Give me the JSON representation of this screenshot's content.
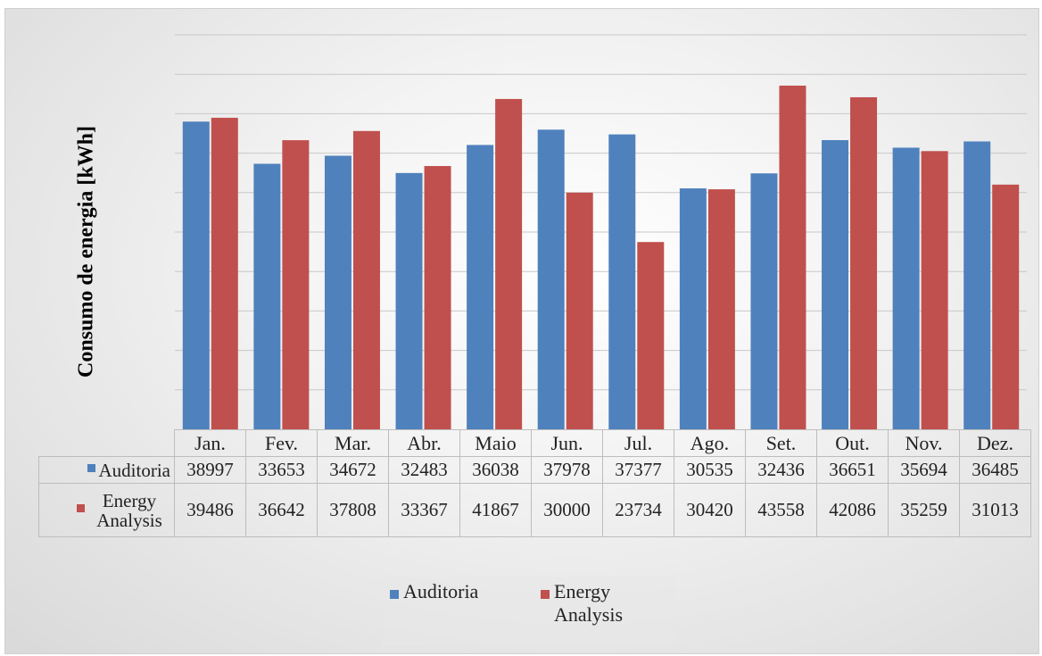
{
  "chart_data": {
    "type": "bar",
    "title": "",
    "ylabel": "Consumo de energia [kWh]",
    "xlabel": "",
    "categories": [
      "Jan.",
      "Fev.",
      "Mar.",
      "Abr.",
      "Maio",
      "Jun.",
      "Jul.",
      "Ago.",
      "Set.",
      "Out.",
      "Nov.",
      "Dez."
    ],
    "series": [
      {
        "name": "Auditoria",
        "color": "#4f81bd",
        "values": [
          38997,
          33653,
          34672,
          32483,
          36038,
          37978,
          37377,
          30535,
          32436,
          36651,
          35694,
          36485
        ]
      },
      {
        "name": "Energy Analysis",
        "color": "#c0504d",
        "values": [
          39486,
          36642,
          37808,
          33367,
          41867,
          30000,
          23734,
          30420,
          43558,
          42086,
          35259,
          31013
        ]
      }
    ],
    "ylim": [
      0,
      50000
    ],
    "grid": true,
    "y_tick_labels_shown": false,
    "data_table": true,
    "legend_position": "bottom"
  }
}
